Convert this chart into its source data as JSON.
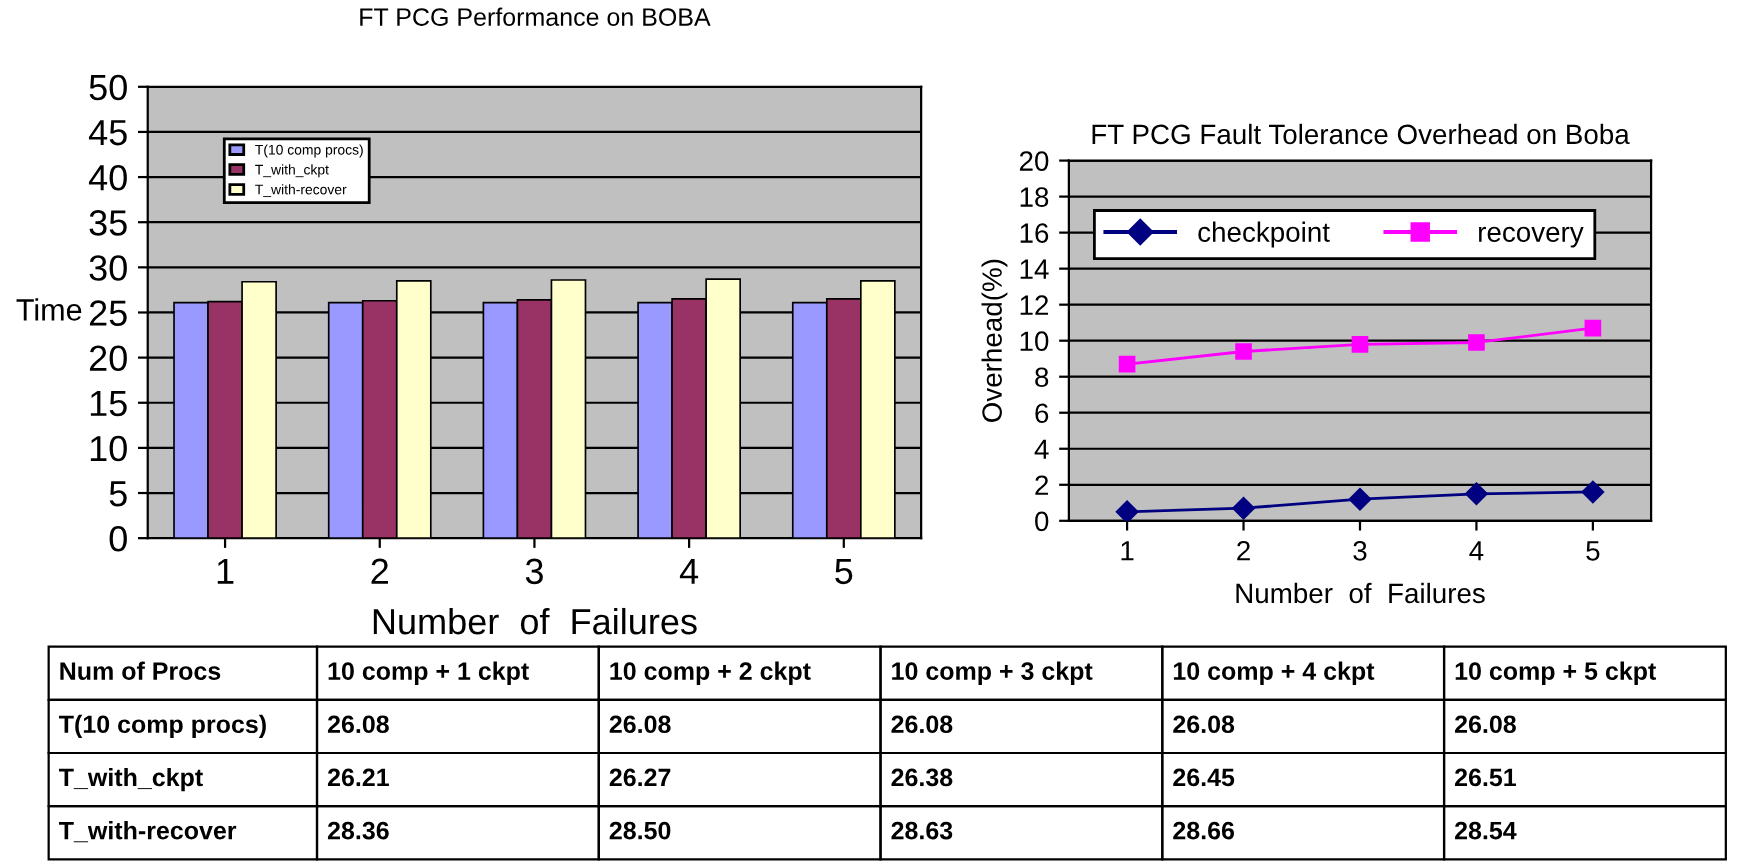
{
  "chart_data": [
    {
      "type": "bar",
      "title": "FT PCG Performance on BOBA",
      "xlabel": "Number  of  Failures",
      "ylabel": "Time",
      "categories": [
        "1",
        "2",
        "3",
        "4",
        "5"
      ],
      "ylim": [
        0,
        50
      ],
      "yticks": [
        0,
        5,
        10,
        15,
        20,
        25,
        30,
        35,
        40,
        45,
        50
      ],
      "grid": "y",
      "legend": "top left",
      "series": [
        {
          "name": "T(10 comp procs)",
          "color": "#9999ff",
          "values": [
            26.1,
            26.1,
            26.1,
            26.1,
            26.1
          ]
        },
        {
          "name": "T_with_ckpt",
          "color": "#993366",
          "values": [
            26.2,
            26.3,
            26.4,
            26.5,
            26.5
          ]
        },
        {
          "name": "T_with-recover",
          "color": "#ffffcc",
          "values": [
            28.4,
            28.5,
            28.6,
            28.7,
            28.5
          ]
        }
      ]
    },
    {
      "type": "line",
      "title": "FT PCG Fault Tolerance Overhead on Boba",
      "xlabel": "Number  of  Failures",
      "ylabel": "Overhead(%)",
      "categories": [
        "1",
        "2",
        "3",
        "4",
        "5"
      ],
      "ylim": [
        0,
        20
      ],
      "yticks": [
        0,
        2,
        4,
        6,
        8,
        10,
        12,
        14,
        16,
        18,
        20
      ],
      "grid": "y",
      "legend": "top left",
      "series": [
        {
          "name": "checkpoint",
          "color": "#000080",
          "marker": "diamond",
          "values": [
            0.5,
            0.7,
            1.2,
            1.5,
            1.6
          ]
        },
        {
          "name": "recovery",
          "color": "#ff00ff",
          "marker": "square",
          "values": [
            8.7,
            9.4,
            9.8,
            9.9,
            10.7
          ]
        }
      ]
    },
    {
      "type": "other",
      "annotations": [
        "Num of Procs"
      ],
      "categories": [
        "10 comp + 1 ckpt",
        "10 comp + 2 ckpt",
        "10 comp + 3 ckpt",
        "10 comp + 4 ckpt",
        "10 comp + 5 ckpt"
      ],
      "series": [
        {
          "name": "T(10 comp procs)",
          "values": [
            26.08,
            26.08,
            26.08,
            26.08,
            26.08
          ],
          "value_labels": [
            "26.08",
            "26.08",
            "26.08",
            "26.08",
            "26.08"
          ]
        },
        {
          "name": "T_with_ckpt",
          "values": [
            26.21,
            26.27,
            26.38,
            26.45,
            26.51
          ],
          "value_labels": [
            "26.21",
            "26.27",
            "26.38",
            "26.45",
            "26.51"
          ]
        },
        {
          "name": "T_with-recover",
          "values": [
            28.36,
            28.5,
            28.63,
            28.66,
            28.54
          ],
          "value_labels": [
            "28.36",
            "28.50",
            "28.63",
            "28.66",
            "28.54"
          ]
        }
      ]
    }
  ]
}
